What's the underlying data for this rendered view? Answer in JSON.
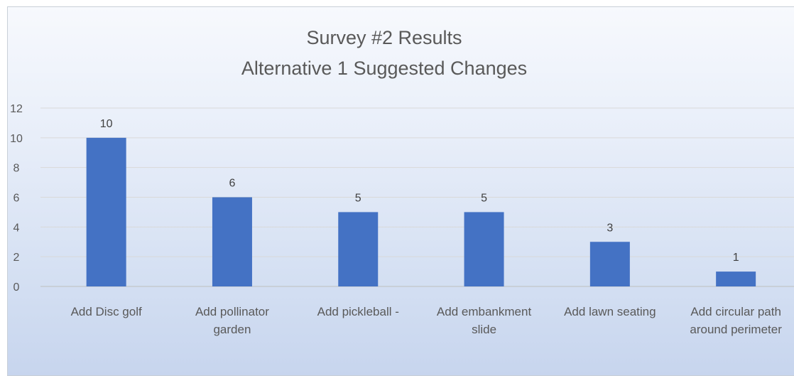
{
  "chart_data": {
    "type": "bar",
    "title": "Survey #2 Results",
    "subtitle": "Alternative 1 Suggested Changes",
    "categories": [
      [
        "Add Disc golf"
      ],
      [
        "Add pollinator",
        "garden"
      ],
      [
        "Add pickleball -"
      ],
      [
        "Add embankment",
        "slide"
      ],
      [
        "Add lawn seating"
      ],
      [
        "Add circular path",
        "around perimeter"
      ]
    ],
    "values": [
      10,
      6,
      5,
      5,
      3,
      1
    ],
    "yticks": [
      0,
      2,
      4,
      6,
      8,
      10,
      12
    ],
    "ylim": [
      0,
      12
    ],
    "grid": true,
    "legend": "none",
    "bar_color": "#4472c4"
  }
}
